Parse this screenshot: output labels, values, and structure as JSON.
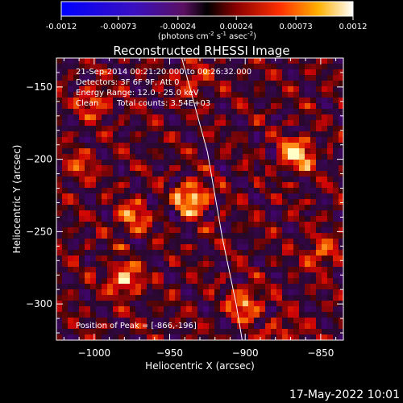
{
  "colorbar": {
    "ticks": [
      "-0.0012",
      "-0.00073",
      "-0.00024",
      "0.00024",
      "0.00073",
      "0.0012"
    ],
    "tick_values": [
      -0.0012,
      -0.00073,
      -0.00024,
      0.00024,
      0.00073,
      0.0012
    ],
    "range": [
      -0.0012,
      0.0012
    ],
    "units_line": "(photons cm",
    "units_sup1": "-2",
    "units_mid": " s",
    "units_sup2": "-1",
    "units_end": " asec",
    "units_sup3": "-2",
    "units_close": ")"
  },
  "chart_data": {
    "type": "heatmap",
    "title": "Reconstructed RHESSI Image",
    "xlabel": "Heliocentric X (arcsec)",
    "ylabel": "Heliocentric Y (arcsec)",
    "xlim": [
      -1025,
      -835
    ],
    "ylim": [
      -325,
      -130
    ],
    "x_ticks": [
      -1000,
      -950,
      -900,
      -850
    ],
    "x_tick_labels": [
      "−1000",
      "−950",
      "−900",
      "−850"
    ],
    "y_ticks": [
      -150,
      -200,
      -250,
      -300
    ],
    "y_tick_labels": [
      "−150",
      "−200",
      "−250",
      "−300"
    ],
    "annotations": [
      "21-Sep-2014 00:21:20.000 to 00:26:32.000",
      "Detectors: 3F 6F 9F, Att 0",
      "Energy Range: 12.0 - 25.0 keV",
      "Clean",
      "Total counts: 3.54E+03"
    ],
    "peak_label": "Position of Peak = [-866,-196]",
    "peak": [
      -866,
      -196
    ],
    "bright_sources": [
      {
        "x": -866,
        "y": -196,
        "strength": 1.0
      },
      {
        "x": -935,
        "y": -227,
        "strength": 0.95
      },
      {
        "x": -980,
        "y": -283,
        "strength": 0.8
      },
      {
        "x": -900,
        "y": -300,
        "strength": 0.7
      },
      {
        "x": -975,
        "y": -240,
        "strength": 0.6
      },
      {
        "x": -850,
        "y": -265,
        "strength": 0.55
      },
      {
        "x": -1000,
        "y": -160,
        "strength": 0.55
      },
      {
        "x": -935,
        "y": -145,
        "strength": 0.45
      },
      {
        "x": -1010,
        "y": -205,
        "strength": 0.4
      },
      {
        "x": -875,
        "y": -320,
        "strength": 0.4
      }
    ],
    "solar_limb": [
      [
        -942,
        -130
      ],
      [
        -925,
        -195
      ],
      [
        -915,
        -255
      ],
      [
        -906,
        -300
      ],
      [
        -902,
        -325
      ]
    ],
    "grid": false
  },
  "footer": {
    "date": "17-May-2022 10:01"
  }
}
